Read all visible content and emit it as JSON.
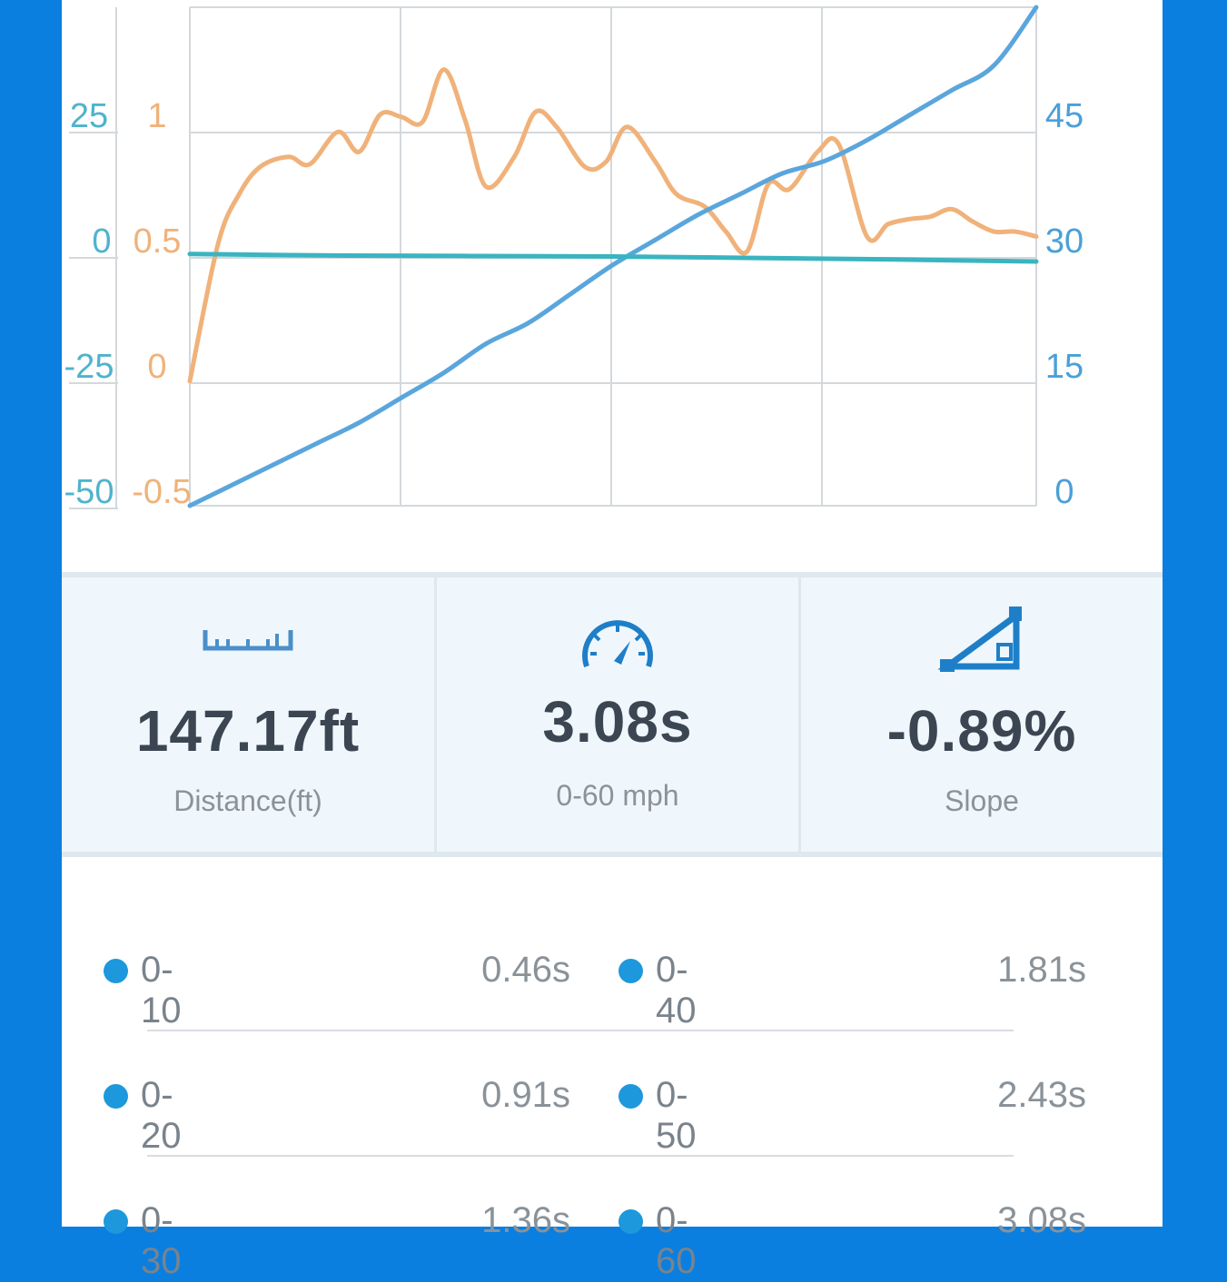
{
  "chart_data": {
    "type": "line",
    "axes": {
      "left_outer": {
        "ticks": [
          "25",
          "0",
          "-25",
          "-50"
        ],
        "color": "#4fb3cc"
      },
      "left_inner": {
        "ticks": [
          "1",
          "0.5",
          "0",
          "-0.5"
        ],
        "color": "#f0b27a"
      },
      "right": {
        "ticks": [
          "45",
          "30",
          "15",
          "0"
        ],
        "color": "#4aa0d8"
      }
    },
    "series": [
      {
        "color": "#f0b27a",
        "axis": "left_inner",
        "x": [
          0,
          0.2,
          0.35,
          0.5,
          0.7,
          0.85,
          1.05,
          1.2,
          1.35,
          1.5,
          1.65,
          1.8,
          1.95,
          2.1,
          2.3,
          2.45,
          2.6,
          2.8,
          2.95,
          3.1,
          3.3,
          3.45,
          3.65,
          3.8,
          3.95,
          4.1,
          4.25,
          4.45,
          4.6,
          4.8,
          4.95,
          5.1,
          5.25,
          5.4,
          5.55,
          5.7,
          5.85,
          6.0
        ],
        "values": [
          0.0,
          0.55,
          0.75,
          0.86,
          0.9,
          0.87,
          1.0,
          0.92,
          1.07,
          1.06,
          1.04,
          1.25,
          1.05,
          0.78,
          0.9,
          1.08,
          1.02,
          0.86,
          0.88,
          1.02,
          0.88,
          0.75,
          0.7,
          0.6,
          0.52,
          0.79,
          0.77,
          0.92,
          0.95,
          0.58,
          0.63,
          0.65,
          0.66,
          0.69,
          0.64,
          0.6,
          0.6,
          0.58
        ]
      },
      {
        "color": "#5aa6dc",
        "axis": "right",
        "x": [
          0,
          0.3,
          0.6,
          0.9,
          1.2,
          1.5,
          1.8,
          2.1,
          2.4,
          2.7,
          3.0,
          3.3,
          3.6,
          3.9,
          4.2,
          4.5,
          4.8,
          5.1,
          5.4,
          5.7,
          6.0
        ],
        "values": [
          0,
          2.5,
          5,
          7.5,
          10,
          13,
          16,
          19.5,
          22,
          25.5,
          29,
          32,
          35,
          37.5,
          40,
          41.5,
          44,
          47,
          50,
          53,
          60
        ]
      },
      {
        "color": "#3ab4c0",
        "axis": "left_outer",
        "x": [
          0,
          1,
          2,
          3,
          4,
          5,
          6
        ],
        "values": [
          0.5,
          0.2,
          0.1,
          0,
          -0.3,
          -0.6,
          -1.0
        ]
      }
    ],
    "xlim": [
      0,
      6
    ],
    "grid": true
  },
  "stats": [
    {
      "icon": "ruler-icon",
      "value": "147.17ft",
      "label": "Distance(ft)"
    },
    {
      "icon": "speedometer-icon",
      "value": "3.08s",
      "label": "0-60 mph"
    },
    {
      "icon": "slope-icon",
      "value": "-0.89%",
      "label": "Slope"
    }
  ],
  "splits": [
    {
      "left": {
        "range": "0-10",
        "time": "0.46s"
      },
      "right": {
        "range": "0-40",
        "time": "1.81s"
      }
    },
    {
      "left": {
        "range": "0-20",
        "time": "0.91s"
      },
      "right": {
        "range": "0-50",
        "time": "2.43s"
      }
    },
    {
      "left": {
        "range": "0-30",
        "time": "1.36s"
      },
      "right": {
        "range": "0-60",
        "time": "3.08s"
      }
    }
  ],
  "colors": {
    "accent": "#1e98dc",
    "background": "#0a7fe0"
  }
}
